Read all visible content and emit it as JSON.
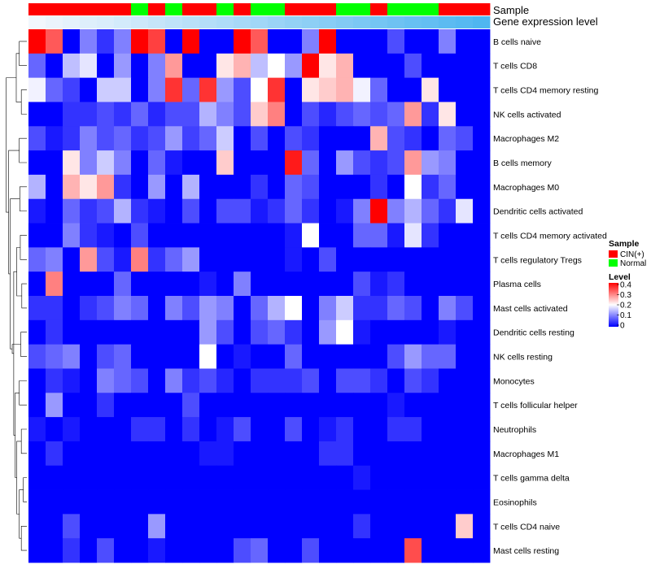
{
  "chart_data": {
    "type": "heatmap",
    "title": "",
    "annotations": {
      "sample_label": "Sample",
      "gene_label": "Gene expression level",
      "sample_groups": [
        "C",
        "C",
        "C",
        "C",
        "C",
        "C",
        "N",
        "C",
        "N",
        "C",
        "C",
        "N",
        "C",
        "N",
        "N",
        "C",
        "C",
        "C",
        "N",
        "N",
        "C",
        "N",
        "N",
        "N",
        "C",
        "C",
        "C"
      ],
      "gene_levels": [
        0.0,
        0.04,
        0.08,
        0.12,
        0.15,
        0.19,
        0.23,
        0.27,
        0.31,
        0.35,
        0.38,
        0.42,
        0.46,
        0.5,
        0.54,
        0.58,
        0.62,
        0.65,
        0.69,
        0.73,
        0.77,
        0.81,
        0.85,
        0.88,
        0.92,
        0.96,
        1.0
      ]
    },
    "rows": [
      "B cells naive",
      "T cells CD8",
      "T cells CD4 memory resting",
      "NK cells activated",
      "Macrophages M2",
      "B cells memory",
      "Macrophages M0",
      "Dendritic cells activated",
      "T cells CD4 memory activated",
      "T cells regulatory  Tregs",
      "Plasma cells",
      "Mast cells activated",
      "Dendritic cells resting",
      "NK cells resting",
      "Monocytes",
      "T cells follicular helper",
      "Neutrophils",
      "Macrophages M1",
      "T cells gamma delta",
      "Eosinophils",
      "T cells CD4 naive",
      "Mast cells resting"
    ],
    "values": [
      [
        0.4,
        0.33,
        0.0,
        0.1,
        0.04,
        0.1,
        0.4,
        0.35,
        0.0,
        0.4,
        0.0,
        0.0,
        0.4,
        0.33,
        0.0,
        0.0,
        0.1,
        0.4,
        0.0,
        0.0,
        0.0,
        0.06,
        0.0,
        0.0,
        0.1,
        0.0,
        0.0
      ],
      [
        0.08,
        0.0,
        0.15,
        0.18,
        0.0,
        0.12,
        0.0,
        0.1,
        0.28,
        0.0,
        0.0,
        0.22,
        0.26,
        0.15,
        0.2,
        0.12,
        0.4,
        0.22,
        0.26,
        0.0,
        0.0,
        0.0,
        0.06,
        0.0,
        0.0,
        0.0,
        0.0
      ],
      [
        0.19,
        0.08,
        0.05,
        0.0,
        0.16,
        0.16,
        0.0,
        0.1,
        0.36,
        0.08,
        0.36,
        0.12,
        0.06,
        0.2,
        0.36,
        0.0,
        0.22,
        0.24,
        0.26,
        0.19,
        0.08,
        0.0,
        0.0,
        0.22,
        0.0,
        0.0,
        0.0
      ],
      [
        0.0,
        0.0,
        0.04,
        0.04,
        0.06,
        0.04,
        0.08,
        0.03,
        0.06,
        0.06,
        0.14,
        0.1,
        0.06,
        0.24,
        0.3,
        0.0,
        0.06,
        0.03,
        0.06,
        0.08,
        0.06,
        0.08,
        0.28,
        0.04,
        0.22,
        0.0,
        0.0
      ],
      [
        0.06,
        0.02,
        0.04,
        0.1,
        0.06,
        0.08,
        0.04,
        0.06,
        0.12,
        0.05,
        0.08,
        0.16,
        0.0,
        0.06,
        0.0,
        0.06,
        0.04,
        0.0,
        0.0,
        0.0,
        0.26,
        0.06,
        0.04,
        0.0,
        0.08,
        0.06,
        0.0
      ],
      [
        0.0,
        0.0,
        0.22,
        0.1,
        0.16,
        0.1,
        0.0,
        0.08,
        0.02,
        0.0,
        0.0,
        0.24,
        0.0,
        0.0,
        0.0,
        0.38,
        0.08,
        0.0,
        0.12,
        0.06,
        0.04,
        0.06,
        0.28,
        0.12,
        0.1,
        0.0,
        0.0
      ],
      [
        0.14,
        0.0,
        0.26,
        0.22,
        0.28,
        0.04,
        0.0,
        0.12,
        0.0,
        0.14,
        0.0,
        0.0,
        0.0,
        0.04,
        0.0,
        0.08,
        0.06,
        0.0,
        0.0,
        0.0,
        0.04,
        0.0,
        0.2,
        0.04,
        0.08,
        0.0,
        0.0
      ],
      [
        0.02,
        0.0,
        0.08,
        0.04,
        0.06,
        0.14,
        0.04,
        0.02,
        0.0,
        0.06,
        0.0,
        0.06,
        0.06,
        0.02,
        0.04,
        0.08,
        0.04,
        0.0,
        0.02,
        0.1,
        0.4,
        0.1,
        0.14,
        0.08,
        0.04,
        0.18,
        0.0
      ],
      [
        0.0,
        0.0,
        0.1,
        0.04,
        0.02,
        0.0,
        0.06,
        0.0,
        0.0,
        0.0,
        0.0,
        0.0,
        0.0,
        0.0,
        0.0,
        0.02,
        0.2,
        0.0,
        0.0,
        0.08,
        0.08,
        0.02,
        0.18,
        0.04,
        0.0,
        0.0,
        0.0
      ],
      [
        0.08,
        0.1,
        0.0,
        0.28,
        0.06,
        0.02,
        0.3,
        0.04,
        0.08,
        0.12,
        0.0,
        0.0,
        0.0,
        0.0,
        0.0,
        0.02,
        0.0,
        0.06,
        0.0,
        0.0,
        0.0,
        0.0,
        0.0,
        0.0,
        0.0,
        0.0,
        0.0
      ],
      [
        0.0,
        0.3,
        0.0,
        0.0,
        0.0,
        0.08,
        0.0,
        0.0,
        0.0,
        0.0,
        0.02,
        0.0,
        0.1,
        0.0,
        0.0,
        0.0,
        0.0,
        0.0,
        0.0,
        0.06,
        0.02,
        0.04,
        0.0,
        0.0,
        0.0,
        0.0,
        0.0
      ],
      [
        0.04,
        0.04,
        0.0,
        0.04,
        0.06,
        0.1,
        0.08,
        0.0,
        0.1,
        0.06,
        0.12,
        0.1,
        0.0,
        0.08,
        0.14,
        0.2,
        0.0,
        0.1,
        0.16,
        0.04,
        0.04,
        0.08,
        0.06,
        0.0,
        0.1,
        0.06,
        0.0
      ],
      [
        0.0,
        0.04,
        0.0,
        0.0,
        0.0,
        0.0,
        0.0,
        0.0,
        0.0,
        0.0,
        0.12,
        0.06,
        0.0,
        0.06,
        0.08,
        0.04,
        0.0,
        0.12,
        0.2,
        0.02,
        0.0,
        0.0,
        0.0,
        0.0,
        0.02,
        0.0,
        0.0
      ],
      [
        0.06,
        0.08,
        0.1,
        0.0,
        0.06,
        0.08,
        0.0,
        0.0,
        0.0,
        0.0,
        0.2,
        0.0,
        0.02,
        0.0,
        0.0,
        0.08,
        0.0,
        0.0,
        0.0,
        0.0,
        0.0,
        0.06,
        0.12,
        0.08,
        0.08,
        0.0,
        0.0
      ],
      [
        0.0,
        0.04,
        0.02,
        0.0,
        0.1,
        0.08,
        0.06,
        0.0,
        0.1,
        0.04,
        0.06,
        0.03,
        0.0,
        0.04,
        0.04,
        0.04,
        0.06,
        0.0,
        0.06,
        0.06,
        0.04,
        0.0,
        0.06,
        0.04,
        0.0,
        0.0,
        0.0
      ],
      [
        0.0,
        0.12,
        0.0,
        0.0,
        0.04,
        0.0,
        0.0,
        0.0,
        0.0,
        0.06,
        0.0,
        0.0,
        0.0,
        0.0,
        0.0,
        0.0,
        0.0,
        0.0,
        0.0,
        0.0,
        0.0,
        0.02,
        0.0,
        0.0,
        0.0,
        0.0,
        0.0
      ],
      [
        0.02,
        0.0,
        0.02,
        0.0,
        0.0,
        0.0,
        0.04,
        0.04,
        0.0,
        0.04,
        0.0,
        0.02,
        0.06,
        0.0,
        0.0,
        0.06,
        0.0,
        0.02,
        0.04,
        0.0,
        0.0,
        0.04,
        0.04,
        0.0,
        0.0,
        0.0,
        0.0
      ],
      [
        0.0,
        0.04,
        0.0,
        0.0,
        0.0,
        0.0,
        0.0,
        0.0,
        0.0,
        0.0,
        0.02,
        0.02,
        0.0,
        0.0,
        0.0,
        0.0,
        0.0,
        0.04,
        0.04,
        0.0,
        0.0,
        0.0,
        0.0,
        0.0,
        0.0,
        0.0,
        0.0
      ],
      [
        0.0,
        0.0,
        0.0,
        0.0,
        0.0,
        0.0,
        0.0,
        0.0,
        0.0,
        0.0,
        0.0,
        0.0,
        0.0,
        0.0,
        0.0,
        0.0,
        0.0,
        0.0,
        0.0,
        0.02,
        0.0,
        0.0,
        0.0,
        0.0,
        0.0,
        0.0,
        0.0
      ],
      [
        0.0,
        0.0,
        0.0,
        0.0,
        0.0,
        0.0,
        0.0,
        0.0,
        0.0,
        0.0,
        0.0,
        0.0,
        0.0,
        0.0,
        0.0,
        0.0,
        0.0,
        0.0,
        0.0,
        0.0,
        0.0,
        0.0,
        0.0,
        0.0,
        0.0,
        0.0,
        0.0
      ],
      [
        0.0,
        0.0,
        0.06,
        0.0,
        0.0,
        0.0,
        0.0,
        0.12,
        0.0,
        0.0,
        0.0,
        0.0,
        0.0,
        0.0,
        0.0,
        0.0,
        0.0,
        0.0,
        0.0,
        0.04,
        0.0,
        0.0,
        0.0,
        0.0,
        0.0,
        0.24,
        0.0
      ],
      [
        0.0,
        0.0,
        0.04,
        0.0,
        0.06,
        0.0,
        0.0,
        0.02,
        0.0,
        0.0,
        0.0,
        0.0,
        0.06,
        0.08,
        0.0,
        0.0,
        0.06,
        0.0,
        0.0,
        0.0,
        0.0,
        0.0,
        0.34,
        0.0,
        0.0,
        0.0,
        0.0
      ]
    ],
    "color_scale": {
      "min": 0,
      "max": 0.4,
      "low": "#0000ff",
      "mid": "#ffffff",
      "high": "#ff0000"
    },
    "legend": {
      "sample": {
        "title": "Sample",
        "items": [
          {
            "label": "CIN(+)",
            "color": "#ff0000"
          },
          {
            "label": "Normal",
            "color": "#00ff00"
          }
        ]
      },
      "level": {
        "title": "Level",
        "ticks": [
          "0.4",
          "0.3",
          "0.2",
          "0.1",
          "0"
        ]
      },
      "placement": "right"
    }
  }
}
